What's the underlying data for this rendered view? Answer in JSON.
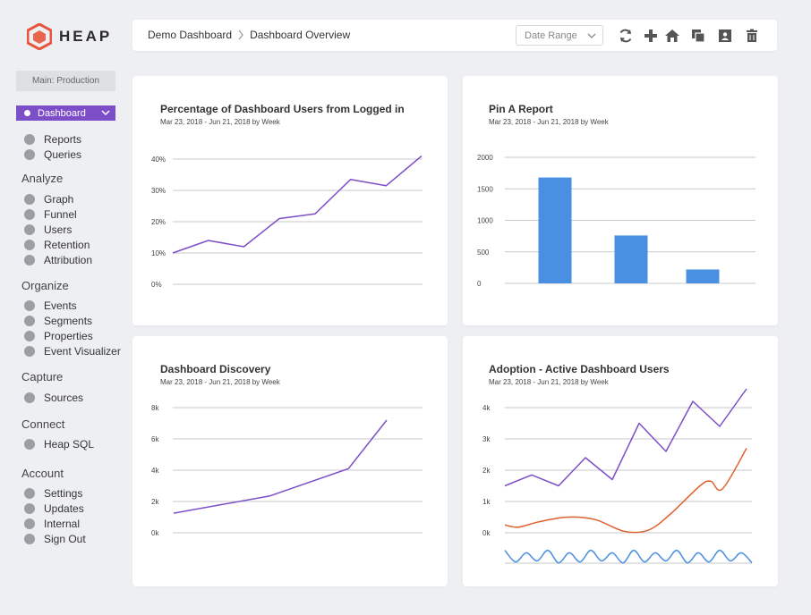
{
  "app": {
    "logo_text": "HEAP",
    "brand_colors": {
      "logo_red": "#e8553e",
      "accent_purple": "#7c4fc9",
      "bar_blue": "#4a90e2",
      "line_orange": "#e0602c",
      "line_blue": "#4a90e2"
    }
  },
  "sidebar": {
    "environment": "Main: Production",
    "dashboard_select": "Dashboard",
    "top_items": [
      {
        "label": "Reports"
      },
      {
        "label": "Queries"
      }
    ],
    "sections": [
      {
        "heading": "Analyze",
        "items": [
          {
            "label": "Graph"
          },
          {
            "label": "Funnel"
          },
          {
            "label": "Users"
          },
          {
            "label": "Retention"
          },
          {
            "label": "Attribution"
          }
        ]
      },
      {
        "heading": "Organize",
        "items": [
          {
            "label": "Events"
          },
          {
            "label": "Segments"
          },
          {
            "label": "Properties"
          },
          {
            "label": "Event Visualizer"
          }
        ]
      },
      {
        "heading": "Capture",
        "items": [
          {
            "label": "Sources"
          }
        ]
      },
      {
        "heading": "Connect",
        "items": [
          {
            "label": "Heap SQL"
          }
        ]
      },
      {
        "heading": "Account",
        "items": [
          {
            "label": "Settings"
          },
          {
            "label": "Updates"
          },
          {
            "label": "Internal"
          },
          {
            "label": "Sign Out"
          }
        ]
      }
    ]
  },
  "header": {
    "breadcrumb": [
      "Demo Dashboard",
      "Dashboard Overview"
    ],
    "date_range_placeholder": "Date Range",
    "tools": [
      "refresh-icon",
      "plus-icon",
      "home-icon",
      "copy-icon",
      "user-card-icon",
      "trash-icon"
    ]
  },
  "cards": [
    {
      "title": "Percentage of Dashboard Users from Logged in",
      "subtitle": "Mar 23, 2018 - Jun 21, 2018 by Week"
    },
    {
      "title": "Pin A Report",
      "subtitle": "Mar 23, 2018 - Jun 21, 2018 by Week"
    },
    {
      "title": "Dashboard Discovery",
      "subtitle": "Mar 23, 2018 - Jun 21, 2018 by Week"
    },
    {
      "title": "Adoption - Active Dashboard Users",
      "subtitle": "Mar 23, 2018 - Jun 21, 2018 by Week"
    }
  ],
  "chart_data": [
    {
      "type": "line",
      "title": "Percentage of Dashboard Users from Logged in",
      "subtitle": "Mar 23, 2018 - Jun 21, 2018 by Week",
      "y_ticks": [
        "0%",
        "10%",
        "20%",
        "30%",
        "40%"
      ],
      "ylim": [
        0,
        40
      ],
      "x": [
        1,
        2,
        3,
        4,
        5,
        6,
        7,
        8
      ],
      "series": [
        {
          "color": "#7c4fc9",
          "values": [
            10,
            14,
            12,
            21,
            22.5,
            33.5,
            31.5,
            41
          ]
        }
      ]
    },
    {
      "type": "bar",
      "title": "Pin A Report",
      "subtitle": "Mar 23, 2018 - Jun 21, 2018 by Week",
      "y_ticks": [
        "0",
        "500",
        "1000",
        "1500",
        "2000"
      ],
      "ylim": [
        0,
        2000
      ],
      "values": [
        1680,
        760,
        220
      ],
      "color": "#4a90e2"
    },
    {
      "type": "line",
      "title": "Dashboard Discovery",
      "subtitle": "Mar 23, 2018 - Jun 21, 2018 by Week",
      "y_ticks": [
        "0k",
        "2k",
        "4k",
        "6k",
        "8k"
      ],
      "ylim": [
        0,
        8000
      ],
      "x": [
        1,
        2,
        3,
        4,
        5
      ],
      "series": [
        {
          "color": "#7c4fc9",
          "values": [
            1250,
            2350,
            4100,
            7200,
            7200
          ],
          "points": [
            [
              0,
              1250
            ],
            [
              0.45,
              2350
            ],
            [
              0.82,
              4100
            ],
            [
              1.0,
              7200
            ]
          ]
        }
      ]
    },
    {
      "type": "line",
      "title": "Adoption - Active Dashboard Users",
      "subtitle": "Mar 23, 2018 - Jun 21, 2018 by Week",
      "y_ticks": [
        "0k",
        "1k",
        "2k",
        "3k",
        "4k"
      ],
      "ylim": [
        0,
        4000
      ],
      "series": [
        {
          "color": "#7c4fc9",
          "values": [
            1500,
            1850,
            1500,
            2400,
            1700,
            3500,
            2600,
            4200,
            3400,
            4600
          ]
        },
        {
          "color": "#e0602c",
          "values": [
            250,
            180,
            350,
            500,
            420,
            50,
            80,
            600,
            1500,
            1650,
            1400,
            2700
          ]
        },
        {
          "color": "#4a90e2",
          "values": [
            -600,
            -900,
            -600,
            -950,
            -600,
            -950,
            -700,
            -900,
            -650,
            -900,
            -500,
            -950
          ]
        }
      ]
    }
  ]
}
